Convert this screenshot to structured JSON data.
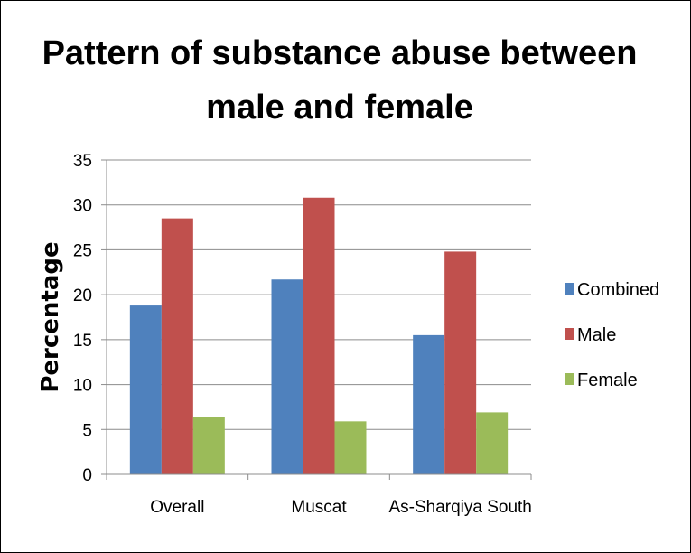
{
  "chart_data": {
    "type": "bar",
    "title": [
      "Pattern of substance abuse between",
      "male and female"
    ],
    "ylabel": "Percentage",
    "xlabel": "",
    "categories": [
      "Overall",
      "Muscat",
      "As-Sharqiya South"
    ],
    "series": [
      {
        "name": "Combined",
        "color": "#4f81bd",
        "values": [
          18.8,
          21.7,
          15.5
        ]
      },
      {
        "name": "Male",
        "color": "#c0504d",
        "values": [
          28.5,
          30.8,
          24.8
        ]
      },
      {
        "name": "Female",
        "color": "#9bbb59",
        "values": [
          6.4,
          5.9,
          6.9
        ]
      }
    ],
    "ylim": [
      0,
      35
    ],
    "yticks": [
      0,
      5,
      10,
      15,
      20,
      25,
      30,
      35
    ],
    "grid": true,
    "legend_position": "right"
  }
}
